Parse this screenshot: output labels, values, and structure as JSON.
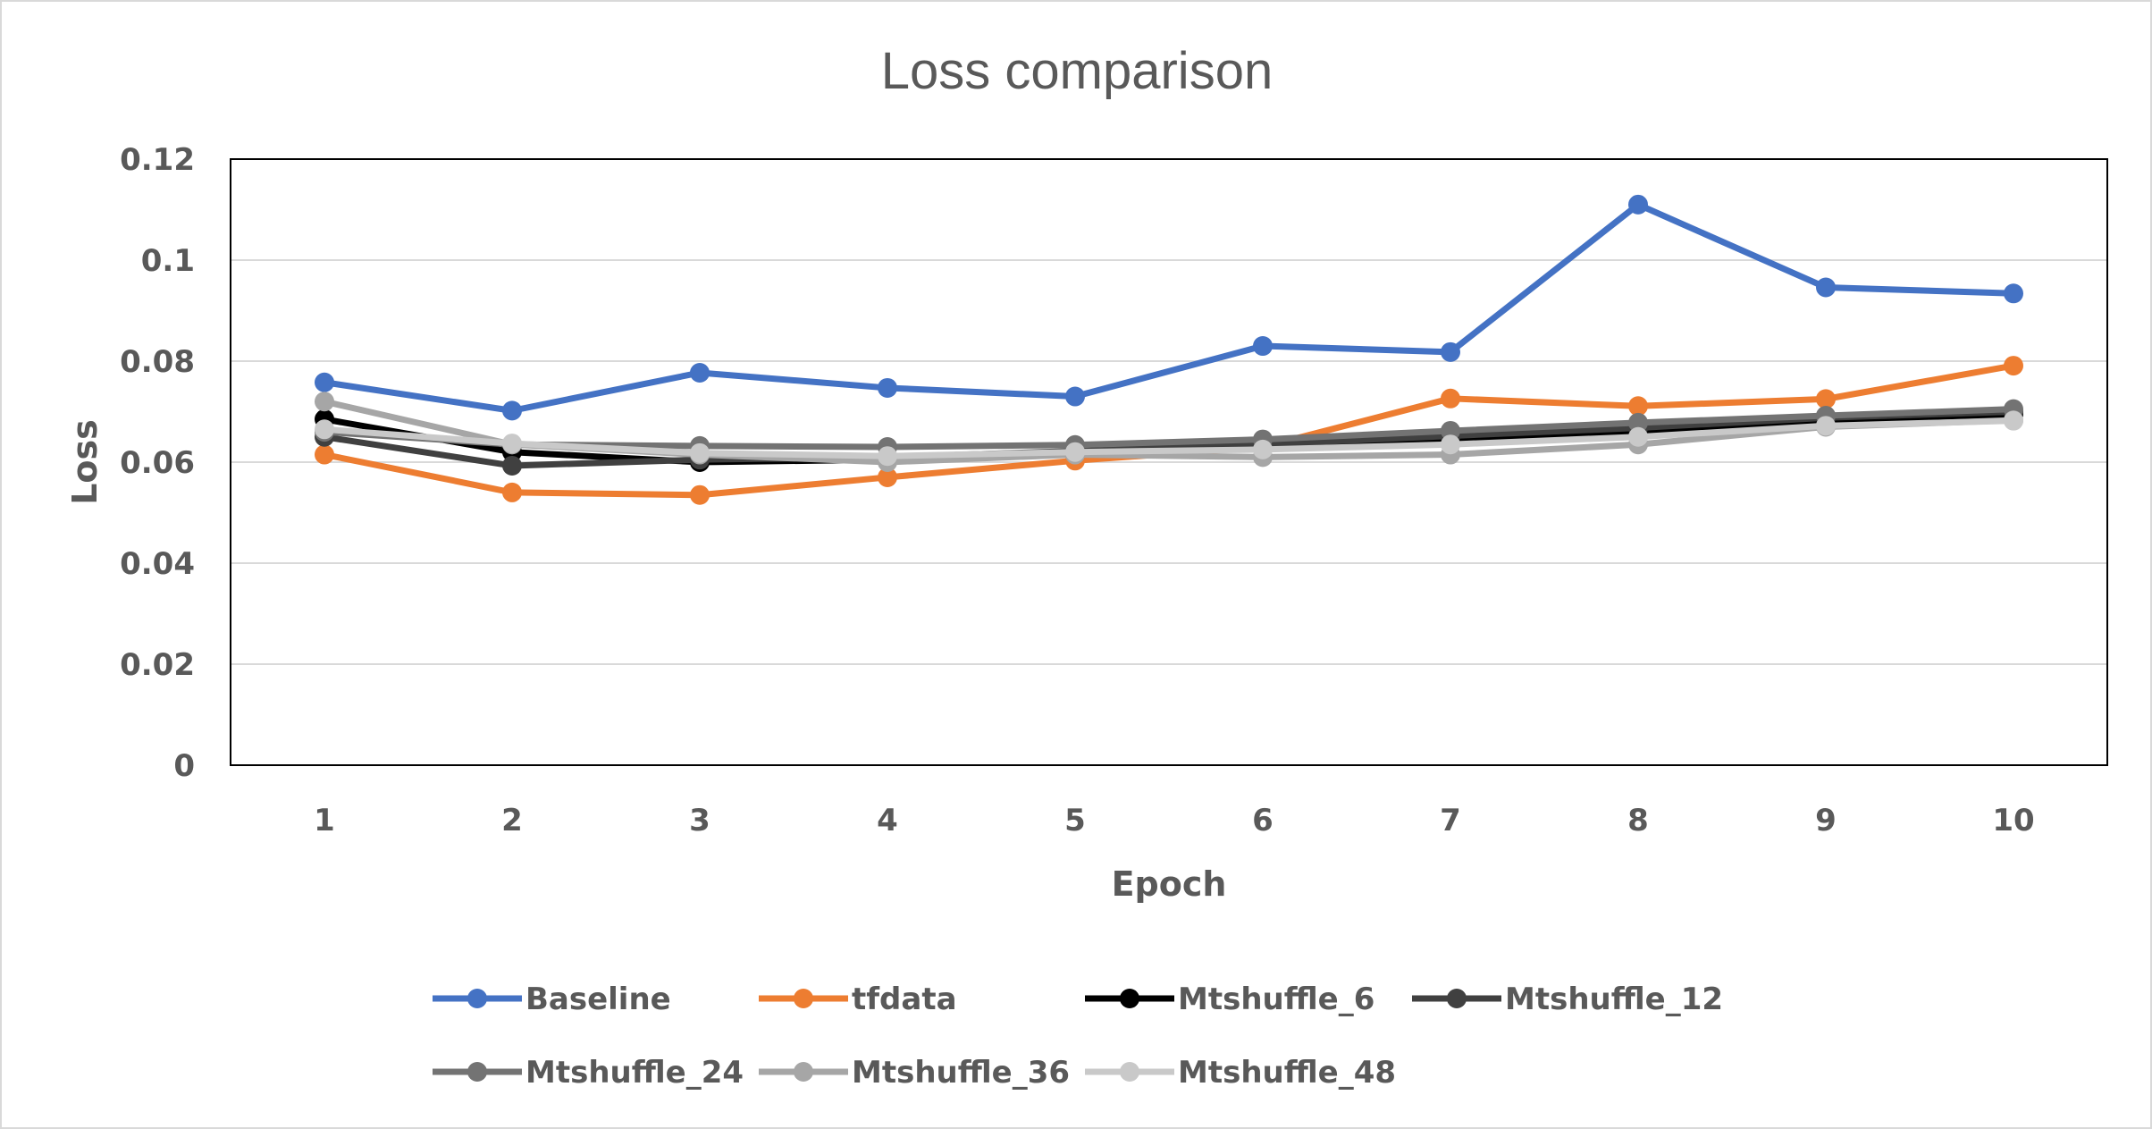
{
  "chart_data": {
    "type": "line",
    "title": "Loss comparison",
    "xlabel": "Epoch",
    "ylabel": "Loss",
    "categories": [
      "1",
      "2",
      "3",
      "4",
      "5",
      "6",
      "7",
      "8",
      "9",
      "10"
    ],
    "ylim": [
      0,
      0.12
    ],
    "yticks": [
      0,
      0.02,
      0.04,
      0.06,
      0.08,
      0.1,
      0.12
    ],
    "ytick_labels": [
      "0",
      "0.02",
      "0.04",
      "0.06",
      "0.08",
      "0.1",
      "0.12"
    ],
    "grid": true,
    "legend_position": "bottom",
    "series": [
      {
        "name": "Baseline",
        "color": "#4472c4",
        "values": [
          0.0758,
          0.0702,
          0.0777,
          0.0747,
          0.073,
          0.083,
          0.0818,
          0.111,
          0.0946,
          0.0934
        ]
      },
      {
        "name": "tfdata",
        "color": "#ed7d31",
        "values": [
          0.0615,
          0.054,
          0.0535,
          0.057,
          0.0603,
          0.063,
          0.0726,
          0.0711,
          0.0725,
          0.0791
        ]
      },
      {
        "name": "Mtshuffle_6",
        "color": "#000000",
        "values": [
          0.0685,
          0.062,
          0.06,
          0.0605,
          0.0618,
          0.063,
          0.0645,
          0.066,
          0.068,
          0.0695
        ]
      },
      {
        "name": "Mtshuffle_12",
        "color": "#404040",
        "values": [
          0.065,
          0.0593,
          0.0605,
          0.061,
          0.0622,
          0.0635,
          0.0652,
          0.0668,
          0.0688,
          0.07
        ]
      },
      {
        "name": "Mtshuffle_24",
        "color": "#737373",
        "values": [
          0.066,
          0.0635,
          0.0632,
          0.063,
          0.0634,
          0.0645,
          0.0662,
          0.0678,
          0.0692,
          0.0705
        ]
      },
      {
        "name": "Mtshuffle_36",
        "color": "#a6a6a6",
        "values": [
          0.072,
          0.0635,
          0.0615,
          0.06,
          0.0615,
          0.061,
          0.0615,
          0.0635,
          0.067,
          0.0683
        ]
      },
      {
        "name": "Mtshuffle_48",
        "color": "#c9c9c9",
        "values": [
          0.0665,
          0.0637,
          0.0618,
          0.0612,
          0.062,
          0.0625,
          0.0635,
          0.065,
          0.0672,
          0.0682
        ]
      }
    ]
  }
}
